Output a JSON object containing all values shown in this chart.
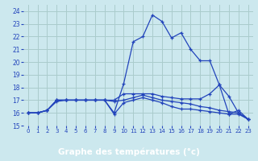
{
  "title": "Graphe des températures (°c)",
  "background_color": "#cce8ee",
  "grid_color": "#aacccc",
  "line_color": "#2244bb",
  "xlabel_bg": "#2244bb",
  "xlabel_color": "#ffffff",
  "xlim": [
    -0.5,
    23.5
  ],
  "ylim": [
    15,
    24.5
  ],
  "yticks": [
    15,
    16,
    17,
    18,
    19,
    20,
    21,
    22,
    23,
    24
  ],
  "xticks": [
    0,
    1,
    2,
    3,
    4,
    5,
    6,
    7,
    8,
    9,
    10,
    11,
    12,
    13,
    14,
    15,
    16,
    17,
    18,
    19,
    20,
    21,
    22,
    23
  ],
  "series": [
    {
      "x": [
        0,
        1,
        2,
        3,
        4,
        5,
        6,
        7,
        8,
        9,
        10,
        11,
        12,
        13,
        14,
        15,
        16,
        17,
        18,
        19,
        20,
        21,
        22,
        23
      ],
      "y": [
        16,
        16,
        16.2,
        16.9,
        17,
        17,
        17,
        17,
        17,
        16.0,
        18.3,
        21.6,
        22.0,
        23.7,
        23.2,
        21.9,
        22.3,
        21.0,
        20.1,
        20.1,
        18.2,
        15.9,
        16.2,
        15.5
      ]
    },
    {
      "x": [
        0,
        1,
        2,
        3,
        4,
        5,
        6,
        7,
        8,
        9,
        10,
        11,
        12,
        13,
        14,
        15,
        16,
        17,
        18,
        19,
        20,
        21,
        22,
        23
      ],
      "y": [
        16,
        16,
        16.2,
        17,
        17,
        17,
        17,
        17,
        17,
        17.0,
        17.5,
        17.5,
        17.5,
        17.5,
        17.3,
        17.2,
        17.1,
        17.1,
        17.1,
        17.5,
        18.2,
        17.3,
        16.0,
        15.5
      ]
    },
    {
      "x": [
        0,
        1,
        2,
        3,
        4,
        5,
        6,
        7,
        8,
        9,
        10,
        11,
        12,
        13,
        14,
        15,
        16,
        17,
        18,
        19,
        20,
        21,
        22,
        23
      ],
      "y": [
        16,
        16,
        16.2,
        17,
        17,
        17,
        17,
        17,
        17,
        16.9,
        17.0,
        17.2,
        17.4,
        17.2,
        17.0,
        16.9,
        16.8,
        16.7,
        16.5,
        16.4,
        16.2,
        16.1,
        16.0,
        15.5
      ]
    },
    {
      "x": [
        0,
        1,
        2,
        3,
        4,
        5,
        6,
        7,
        8,
        9,
        10,
        11,
        12,
        13,
        14,
        15,
        16,
        17,
        18,
        19,
        20,
        21,
        22,
        23
      ],
      "y": [
        16,
        16,
        16.2,
        17,
        17,
        17,
        17,
        17,
        17,
        15.9,
        16.8,
        17.0,
        17.2,
        17.0,
        16.8,
        16.5,
        16.3,
        16.3,
        16.2,
        16.1,
        16.0,
        15.9,
        15.9,
        15.5
      ]
    }
  ]
}
